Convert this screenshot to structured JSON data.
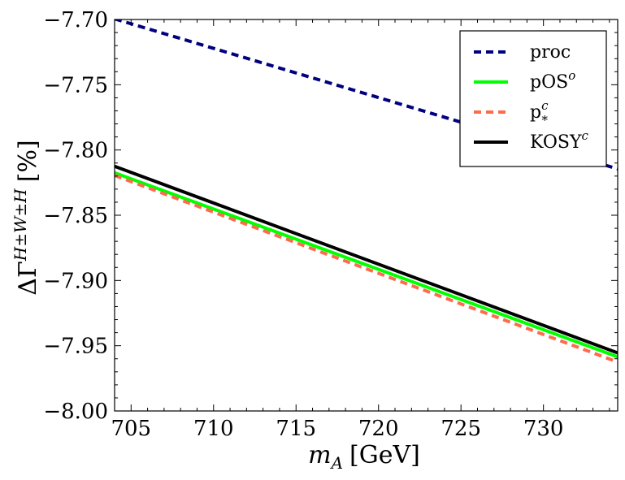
{
  "chart_data": {
    "type": "line",
    "title": "",
    "xlabel": {
      "var": "m",
      "sub": "A",
      "unit": "[GeV]"
    },
    "ylabel": {
      "var": "ΔΓ",
      "sup": "H±W±H",
      "unit": "[%]"
    },
    "xlim": [
      704,
      734.5
    ],
    "ylim": [
      -8.0,
      -7.7
    ],
    "xticks": [
      705,
      710,
      715,
      720,
      725,
      730
    ],
    "yticks": [
      -8.0,
      -7.95,
      -7.9,
      -7.85,
      -7.8,
      -7.75,
      -7.7
    ],
    "xtick_labels": [
      "705",
      "710",
      "715",
      "720",
      "725",
      "730"
    ],
    "ytick_labels": [
      "−8.00",
      "−7.95",
      "−7.90",
      "−7.85",
      "−7.80",
      "−7.75",
      "−7.70"
    ],
    "legend_position": "top-right",
    "series": [
      {
        "name": "proc",
        "label": "proc",
        "sup": "",
        "sub": "",
        "color": "#00007f",
        "style": "dashed",
        "x": [
          704,
          734.5
        ],
        "y": [
          -7.6995,
          -7.8145
        ]
      },
      {
        "name": "pOSo",
        "label": "pOS",
        "sup": "o",
        "sub": "",
        "color": "#00ff00",
        "style": "solid",
        "x": [
          704,
          734.5
        ],
        "y": [
          -7.8175,
          -7.9585
        ]
      },
      {
        "name": "p*c",
        "label": "p",
        "sup": "c",
        "sub": "*",
        "color": "#ff6a4d",
        "style": "dashed",
        "x": [
          704,
          734.5
        ],
        "y": [
          -7.8195,
          -7.9625
        ]
      },
      {
        "name": "KOSYc",
        "label": "KOSY",
        "sup": "c",
        "sub": "",
        "color": "#000000",
        "style": "solid",
        "x": [
          704,
          734.5
        ],
        "y": [
          -7.8125,
          -7.9555
        ]
      }
    ]
  }
}
